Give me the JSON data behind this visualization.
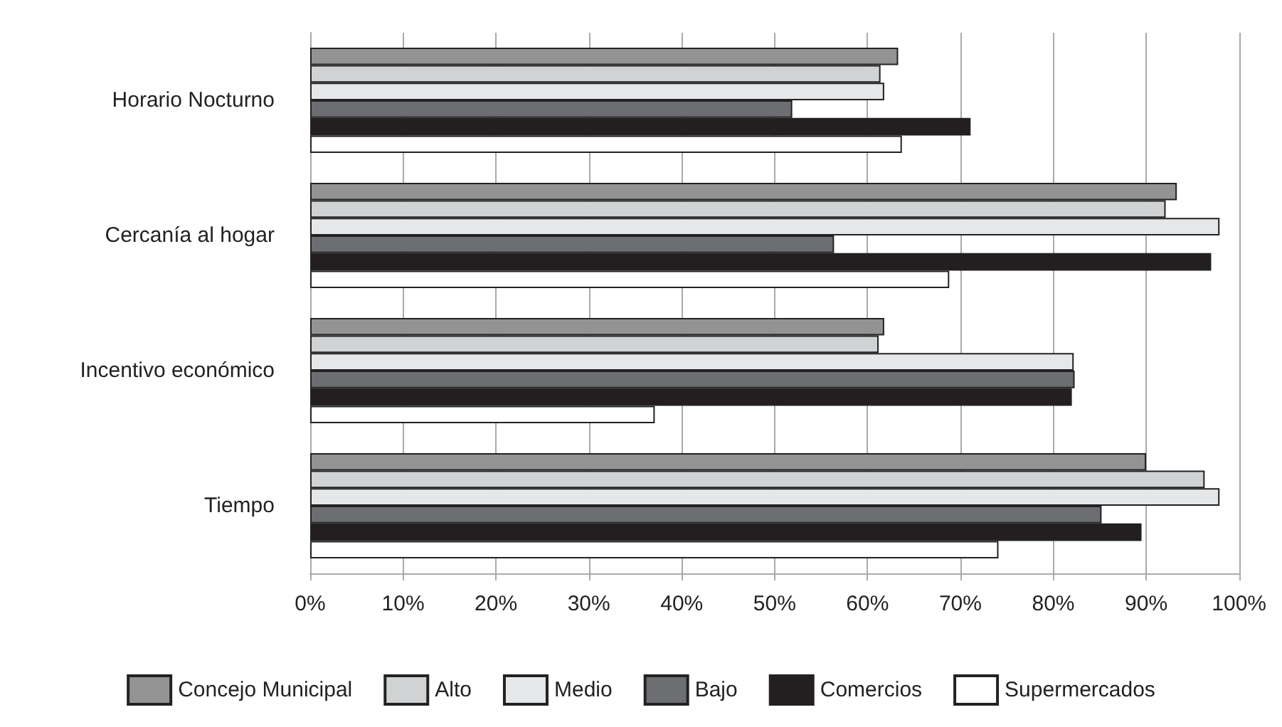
{
  "chart_data": {
    "type": "bar",
    "orientation": "horizontal",
    "categories": [
      "Horario Nocturno",
      "Cercanía al hogar",
      "Incentivo económico",
      "Tiempo"
    ],
    "series": [
      {
        "name": "Concejo Municipal",
        "color": "#939393",
        "values": [
          63.3,
          93.3,
          61.8,
          90.0
        ]
      },
      {
        "name": "Alto",
        "color": "#d1d2d4",
        "values": [
          61.4,
          92.1,
          61.2,
          96.3
        ]
      },
      {
        "name": "Medio",
        "color": "#e6e7e8",
        "values": [
          61.8,
          97.9,
          82.2,
          97.9
        ]
      },
      {
        "name": "Bajo",
        "color": "#6d6e71",
        "values": [
          51.9,
          56.4,
          82.3,
          85.2
        ]
      },
      {
        "name": "Comercios",
        "color": "#231f20",
        "values": [
          71.1,
          97.0,
          82.0,
          89.5
        ]
      },
      {
        "name": "Supermercados",
        "color": "#ffffff",
        "values": [
          63.7,
          68.8,
          37.1,
          74.1
        ]
      }
    ],
    "xlim": [
      0,
      100
    ],
    "xticks": [
      {
        "value": 0,
        "label": "0%"
      },
      {
        "value": 10,
        "label": "10%"
      },
      {
        "value": 20,
        "label": "20%"
      },
      {
        "value": 30,
        "label": "30%"
      },
      {
        "value": 40,
        "label": "40%"
      },
      {
        "value": 50,
        "label": "50%"
      },
      {
        "value": 60,
        "label": "60%"
      },
      {
        "value": 70,
        "label": "70%"
      },
      {
        "value": 80,
        "label": "80%"
      },
      {
        "value": 90,
        "label": "90%"
      },
      {
        "value": 100,
        "label": "100%"
      }
    ],
    "grid": "x",
    "legend": "bottom"
  }
}
